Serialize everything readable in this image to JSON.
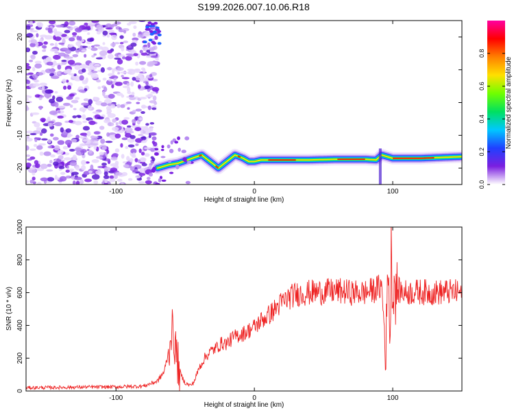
{
  "title": "S199.2026.007.10.06.R18",
  "colorbar": {
    "label": "Normalized spectral amplitude",
    "ticks": [
      0.0,
      0.2,
      0.4,
      0.6,
      0.8
    ],
    "tick_labels": [
      "0.0",
      "0.2",
      "0.4",
      "0.6",
      "0.8"
    ],
    "colors": [
      "#ffffff",
      "#7b1fe0",
      "#2040ff",
      "#00c8ff",
      "#00e060",
      "#70ff00",
      "#ffe000",
      "#ff8000",
      "#ff0000",
      "#ff00a0"
    ]
  },
  "chart_data": [
    {
      "type": "heatmap",
      "xlabel": "Height of straight line (km)",
      "ylabel": "Frequency (Hz)",
      "xlim": [
        -165,
        150
      ],
      "ylim": [
        -25,
        25
      ],
      "xticks": [
        -100,
        0,
        100
      ],
      "xtick_labels": [
        "-100",
        "0",
        "100"
      ],
      "yticks": [
        -20,
        -10,
        0,
        10,
        20
      ],
      "ytick_labels": [
        "-20",
        "-10",
        "0",
        "10",
        "20"
      ],
      "grid": false,
      "description_series": {
        "name": "",
        "x": [
          -70,
          -62,
          -55,
          -45,
          -38,
          -32,
          -26,
          -20,
          -14,
          -8,
          -4,
          0,
          5,
          20,
          40,
          60,
          80,
          88,
          92,
          96,
          100,
          120,
          150
        ],
        "y": [
          -20,
          -19,
          -18.5,
          -17,
          -16,
          -18,
          -20,
          -18,
          -16,
          -17,
          -18,
          -18,
          -17.5,
          -17.5,
          -17.5,
          -17.3,
          -17.3,
          -17.5,
          -16,
          -16.5,
          -17,
          -17,
          -16.5
        ]
      }
    },
    {
      "type": "line",
      "xlabel": "Height of straight line (km)",
      "ylabel": "SNR (10 * v/v)",
      "xlim": [
        -165,
        150
      ],
      "ylim": [
        0,
        1000
      ],
      "xticks": [
        -100,
        0,
        100
      ],
      "xtick_labels": [
        "-100",
        "0",
        "100"
      ],
      "yticks": [
        0,
        200,
        400,
        600,
        800,
        1000
      ],
      "ytick_labels": [
        "0",
        "200",
        "400",
        "600",
        "800",
        "1000"
      ],
      "grid": false,
      "series": [
        {
          "name": "",
          "color": "#ee2222",
          "x": [
            -165,
            -140,
            -120,
            -100,
            -80,
            -70,
            -65,
            -62,
            -60,
            -58,
            -56,
            -54,
            -52,
            -50,
            -48,
            -46,
            -44,
            -42,
            -40,
            -36,
            -32,
            -28,
            -24,
            -20,
            -16,
            -12,
            -8,
            -4,
            0,
            5,
            10,
            15,
            20,
            25,
            30,
            40,
            50,
            60,
            70,
            80,
            88,
            92,
            95,
            97,
            98,
            99,
            100,
            101,
            102,
            103,
            105,
            110,
            120,
            130,
            140,
            150
          ],
          "y": [
            20,
            22,
            24,
            25,
            30,
            60,
            120,
            240,
            380,
            320,
            200,
            120,
            80,
            50,
            40,
            35,
            50,
            90,
            140,
            200,
            240,
            260,
            290,
            290,
            320,
            340,
            350,
            370,
            390,
            430,
            460,
            500,
            540,
            570,
            590,
            600,
            605,
            610,
            600,
            600,
            620,
            640,
            250,
            850,
            170,
            960,
            500,
            700,
            580,
            620,
            610,
            600,
            605,
            600,
            605,
            600
          ]
        }
      ]
    }
  ]
}
